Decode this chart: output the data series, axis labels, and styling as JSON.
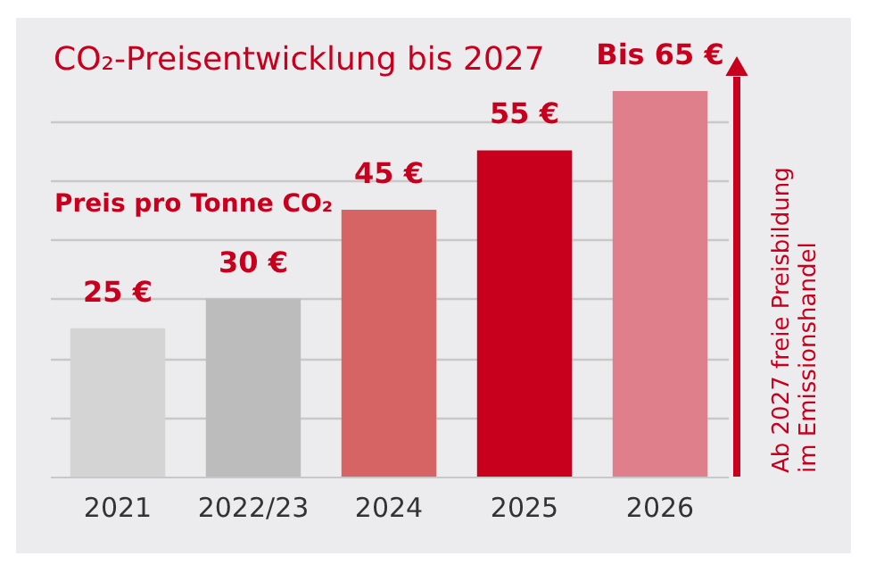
{
  "chart_data": {
    "type": "bar",
    "title": "CO₂-Preisentwicklung bis 2027",
    "ylabel": "Preis pro Tonne CO₂",
    "categories": [
      "2021",
      "2022/23",
      "2024",
      "2025",
      "2026"
    ],
    "values": [
      25,
      30,
      45,
      55,
      65
    ],
    "colors": [
      "#d4d4d4",
      "#bcbcbc",
      "#d66464",
      "#c8001e",
      "#e07f8c"
    ],
    "value_labels": [
      "25 €",
      "30 €",
      "45 €",
      "55 €",
      "Bis 65 €"
    ],
    "ylim": [
      0,
      65
    ],
    "yticks": [
      {
        "value": 10,
        "label": null
      },
      {
        "value": 20,
        "label": null
      },
      {
        "value": 30,
        "label": null
      },
      {
        "value": 40,
        "label": null
      },
      {
        "value": 50,
        "label": null
      },
      {
        "value": 60,
        "label": null
      }
    ],
    "grid": "y",
    "tick_labels": "x",
    "annotations": [
      "Ab 2027 freie Preisbildung im Emissionshandel"
    ]
  }
}
